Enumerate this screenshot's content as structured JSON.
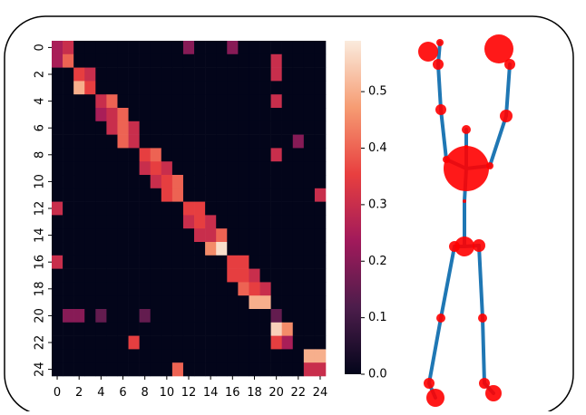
{
  "chart_data": {
    "type": "heatmap",
    "xticks": [
      0,
      2,
      4,
      6,
      8,
      10,
      12,
      14,
      16,
      18,
      20,
      22,
      24
    ],
    "yticks": [
      0,
      2,
      4,
      6,
      8,
      10,
      12,
      14,
      16,
      18,
      20,
      22,
      24
    ],
    "clim": [
      0,
      0.59
    ],
    "colorbar_ticks": [
      {
        "value": 0,
        "label": "0.0"
      },
      0.1,
      0.2,
      0.3,
      0.4,
      0.5
    ],
    "values": [
      [
        0.25,
        0.3,
        0,
        0,
        0,
        0,
        0,
        0,
        0,
        0,
        0,
        0,
        0.2,
        0,
        0,
        0,
        0.2,
        0,
        0,
        0,
        0,
        0,
        0,
        0,
        0
      ],
      [
        0.25,
        0.4,
        0,
        0,
        0,
        0,
        0,
        0,
        0,
        0,
        0,
        0,
        0,
        0,
        0,
        0,
        0,
        0,
        0,
        0,
        0.3,
        0,
        0,
        0,
        0
      ],
      [
        0,
        0,
        0.35,
        0.3,
        0,
        0,
        0,
        0,
        0,
        0,
        0,
        0,
        0,
        0,
        0,
        0,
        0,
        0,
        0,
        0,
        0.3,
        0,
        0,
        0,
        0
      ],
      [
        0,
        0,
        0.5,
        0.35,
        0,
        0,
        0,
        0,
        0,
        0,
        0,
        0,
        0,
        0,
        0,
        0,
        0,
        0,
        0,
        0,
        0,
        0,
        0,
        0,
        0
      ],
      [
        0,
        0,
        0,
        0,
        0.3,
        0.4,
        0,
        0,
        0,
        0,
        0,
        0,
        0,
        0,
        0,
        0,
        0,
        0,
        0,
        0,
        0.3,
        0,
        0,
        0,
        0
      ],
      [
        0,
        0,
        0,
        0,
        0.25,
        0.3,
        0.4,
        0,
        0,
        0,
        0,
        0,
        0,
        0,
        0,
        0,
        0,
        0,
        0,
        0,
        0,
        0,
        0,
        0,
        0
      ],
      [
        0,
        0,
        0,
        0,
        0,
        0.3,
        0.4,
        0.3,
        0,
        0,
        0,
        0,
        0,
        0,
        0,
        0,
        0,
        0,
        0,
        0,
        0,
        0,
        0,
        0,
        0
      ],
      [
        0,
        0,
        0,
        0,
        0,
        0,
        0.4,
        0.3,
        0,
        0,
        0,
        0,
        0,
        0,
        0,
        0,
        0,
        0,
        0,
        0,
        0,
        0,
        0.2,
        0,
        0
      ],
      [
        0,
        0,
        0,
        0,
        0,
        0,
        0,
        0,
        0.35,
        0.4,
        0,
        0,
        0,
        0,
        0,
        0,
        0,
        0,
        0,
        0,
        0.3,
        0,
        0,
        0,
        0
      ],
      [
        0,
        0,
        0,
        0,
        0,
        0,
        0,
        0,
        0.3,
        0.35,
        0.3,
        0,
        0,
        0,
        0,
        0,
        0,
        0,
        0,
        0,
        0,
        0,
        0,
        0,
        0
      ],
      [
        0,
        0,
        0,
        0,
        0,
        0,
        0,
        0,
        0,
        0.3,
        0.35,
        0.4,
        0,
        0,
        0,
        0,
        0,
        0,
        0,
        0,
        0,
        0,
        0,
        0,
        0
      ],
      [
        0,
        0,
        0,
        0,
        0,
        0,
        0,
        0,
        0,
        0,
        0.35,
        0.4,
        0,
        0,
        0,
        0,
        0,
        0,
        0,
        0,
        0,
        0,
        0,
        0,
        0.3
      ],
      [
        0.3,
        0,
        0,
        0,
        0,
        0,
        0,
        0,
        0,
        0,
        0,
        0,
        0.35,
        0.35,
        0,
        0,
        0,
        0,
        0,
        0,
        0,
        0,
        0,
        0,
        0
      ],
      [
        0,
        0,
        0,
        0,
        0,
        0,
        0,
        0,
        0,
        0,
        0,
        0,
        0.3,
        0.35,
        0.3,
        0,
        0,
        0,
        0,
        0,
        0,
        0,
        0,
        0,
        0
      ],
      [
        0,
        0,
        0,
        0,
        0,
        0,
        0,
        0,
        0,
        0,
        0,
        0,
        0,
        0.3,
        0.3,
        0.4,
        0,
        0,
        0,
        0,
        0,
        0,
        0,
        0,
        0
      ],
      [
        0,
        0,
        0,
        0,
        0,
        0,
        0,
        0,
        0,
        0,
        0,
        0,
        0,
        0,
        0.45,
        0.57,
        0,
        0,
        0,
        0,
        0,
        0,
        0,
        0,
        0
      ],
      [
        0.3,
        0,
        0,
        0,
        0,
        0,
        0,
        0,
        0,
        0,
        0,
        0,
        0,
        0,
        0,
        0,
        0.35,
        0.35,
        0,
        0,
        0,
        0,
        0,
        0,
        0
      ],
      [
        0,
        0,
        0,
        0,
        0,
        0,
        0,
        0,
        0,
        0,
        0,
        0,
        0,
        0,
        0,
        0,
        0.35,
        0.35,
        0.3,
        0,
        0,
        0,
        0,
        0,
        0
      ],
      [
        0,
        0,
        0,
        0,
        0,
        0,
        0,
        0,
        0,
        0,
        0,
        0,
        0,
        0,
        0,
        0,
        0,
        0.4,
        0.35,
        0.3,
        0,
        0,
        0,
        0,
        0
      ],
      [
        0,
        0,
        0,
        0,
        0,
        0,
        0,
        0,
        0,
        0,
        0,
        0,
        0,
        0,
        0,
        0,
        0,
        0,
        0.5,
        0.5,
        0,
        0,
        0,
        0,
        0
      ],
      [
        0,
        0.2,
        0.2,
        0,
        0.15,
        0,
        0,
        0,
        0.15,
        0,
        0,
        0,
        0,
        0,
        0,
        0,
        0,
        0,
        0,
        0,
        0.15,
        0,
        0,
        0,
        0
      ],
      [
        0,
        0,
        0,
        0,
        0,
        0,
        0,
        0,
        0,
        0,
        0,
        0,
        0,
        0,
        0,
        0,
        0,
        0,
        0,
        0,
        0.55,
        0.45,
        0,
        0,
        0
      ],
      [
        0,
        0,
        0,
        0,
        0,
        0,
        0,
        0.35,
        0,
        0,
        0,
        0,
        0,
        0,
        0,
        0,
        0,
        0,
        0,
        0,
        0.35,
        0.25,
        0,
        0,
        0
      ],
      [
        0,
        0,
        0,
        0,
        0,
        0,
        0,
        0,
        0,
        0,
        0,
        0,
        0,
        0,
        0,
        0,
        0,
        0,
        0,
        0,
        0,
        0,
        0,
        0.5,
        0.5
      ],
      [
        0,
        0,
        0,
        0,
        0,
        0,
        0,
        0,
        0,
        0,
        0,
        0.4,
        0,
        0,
        0,
        0,
        0,
        0,
        0,
        0,
        0,
        0,
        0,
        0.3,
        0.3
      ]
    ]
  }
}
